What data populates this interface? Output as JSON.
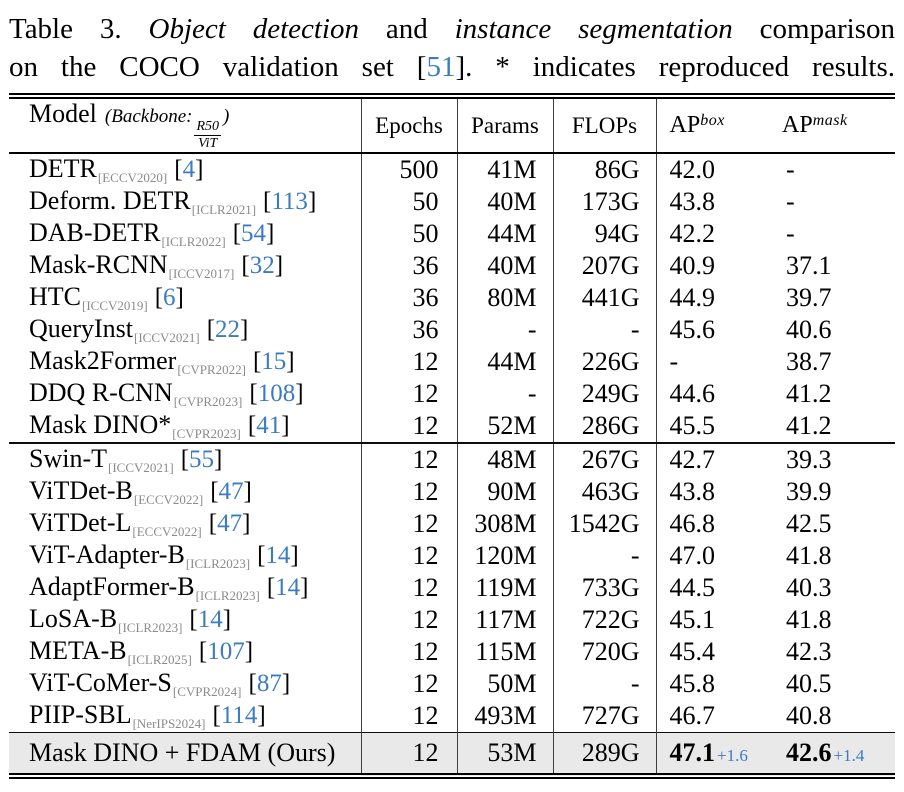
{
  "misc": {
    "bracket_open": "[",
    "bracket_close": "]"
  },
  "colors": {
    "citation_blue": "#3b7cc0",
    "venue_gray": "#8b8b8b",
    "highlight_row_bg": "#e9e9e9"
  },
  "caption": {
    "l1_label": "Table 3. ",
    "l1_italic1": "Object detection",
    "l1_mid": " and ",
    "l1_italic2": "instance segmentation",
    "l1_tail": " comparison",
    "l2_pre": "on the COCO validation set [",
    "l2_cite": "51",
    "l2_post": "]. * indicates reproduced results."
  },
  "header": {
    "model": "Model",
    "backbone_pre": "(Backbone:",
    "frac_top": "R50",
    "frac_bottom": "ViT",
    "backbone_close": ")",
    "epochs": "Epochs",
    "params": "Params",
    "flops": "FLOPs",
    "ap": "AP",
    "ap_box_sup": "box",
    "ap_mask_sup": "mask"
  },
  "table": {
    "group1": [
      {
        "name": "DETR",
        "venue": "[ECCV2020]",
        "cite": "4",
        "epochs": "500",
        "params": "41M",
        "flops": "86G",
        "apbox": "42.0",
        "apmask": "-"
      },
      {
        "name": "Deform. DETR",
        "venue": "[ICLR2021]",
        "cite": "113",
        "epochs": "50",
        "params": "40M",
        "flops": "173G",
        "apbox": "43.8",
        "apmask": "-"
      },
      {
        "name": "DAB-DETR",
        "venue": "[ICLR2022]",
        "cite": "54",
        "epochs": "50",
        "params": "44M",
        "flops": "94G",
        "apbox": "42.2",
        "apmask": "-"
      },
      {
        "name": "Mask-RCNN",
        "venue": "[ICCV2017]",
        "cite": "32",
        "epochs": "36",
        "params": "40M",
        "flops": "207G",
        "apbox": "40.9",
        "apmask": "37.1"
      },
      {
        "name": "HTC",
        "venue": "[ICCV2019]",
        "cite": "6",
        "epochs": "36",
        "params": "80M",
        "flops": "441G",
        "apbox": "44.9",
        "apmask": "39.7"
      },
      {
        "name": "QueryInst",
        "venue": "[ICCV2021]",
        "cite": "22",
        "epochs": "36",
        "params": "-",
        "flops": "-",
        "apbox": "45.6",
        "apmask": "40.6"
      },
      {
        "name": "Mask2Former",
        "venue": "[CVPR2022]",
        "cite": "15",
        "epochs": "12",
        "params": "44M",
        "flops": "226G",
        "apbox": "-",
        "apmask": "38.7"
      },
      {
        "name": "DDQ R-CNN",
        "venue": "[CVPR2023]",
        "cite": "108",
        "epochs": "12",
        "params": "-",
        "flops": "249G",
        "apbox": "44.6",
        "apmask": "41.2"
      },
      {
        "name": "Mask DINO*",
        "venue": "[CVPR2023]",
        "cite": "41",
        "epochs": "12",
        "params": "52M",
        "flops": "286G",
        "apbox": "45.5",
        "apmask": "41.2"
      }
    ],
    "group2": [
      {
        "name": "Swin-T",
        "venue": "[ICCV2021]",
        "cite": "55",
        "epochs": "12",
        "params": "48M",
        "flops": "267G",
        "apbox": "42.7",
        "apmask": "39.3"
      },
      {
        "name": "ViTDet-B",
        "venue": "[ECCV2022]",
        "cite": "47",
        "epochs": "12",
        "params": "90M",
        "flops": "463G",
        "apbox": "43.8",
        "apmask": "39.9"
      },
      {
        "name": "ViTDet-L",
        "venue": "[ECCV2022]",
        "cite": "47",
        "epochs": "12",
        "params": "308M",
        "flops": "1542G",
        "apbox": "46.8",
        "apmask": "42.5"
      },
      {
        "name": "ViT-Adapter-B",
        "venue": "[ICLR2023]",
        "cite": "14",
        "epochs": "12",
        "params": "120M",
        "flops": "-",
        "apbox": "47.0",
        "apmask": "41.8"
      },
      {
        "name": "AdaptFormer-B",
        "venue": "[ICLR2023]",
        "cite": "14",
        "epochs": "12",
        "params": "119M",
        "flops": "733G",
        "apbox": "44.5",
        "apmask": "40.3"
      },
      {
        "name": "LoSA-B",
        "venue": "[ICLR2023]",
        "cite": "14",
        "epochs": "12",
        "params": "117M",
        "flops": "722G",
        "apbox": "45.1",
        "apmask": "41.8"
      },
      {
        "name": "META-B",
        "venue": "[ICLR2025]",
        "cite": "107",
        "epochs": "12",
        "params": "115M",
        "flops": "720G",
        "apbox": "45.4",
        "apmask": "42.3"
      },
      {
        "name": "ViT-CoMer-S",
        "venue": "[CVPR2024]",
        "cite": "87",
        "epochs": "12",
        "params": "50M",
        "flops": "-",
        "apbox": "45.8",
        "apmask": "40.5"
      },
      {
        "name": "PIIP-SBL",
        "venue": "[NerIPS2024]",
        "cite": "114",
        "epochs": "12",
        "params": "493M",
        "flops": "727G",
        "apbox": "46.7",
        "apmask": "40.8"
      }
    ],
    "ours": {
      "name": "Mask DINO + FDAM (Ours)",
      "epochs": "12",
      "params": "53M",
      "flops": "289G",
      "apbox": "47.1",
      "apbox_delta": "+1.6",
      "apmask": "42.6",
      "apmask_delta": "+1.4"
    }
  }
}
